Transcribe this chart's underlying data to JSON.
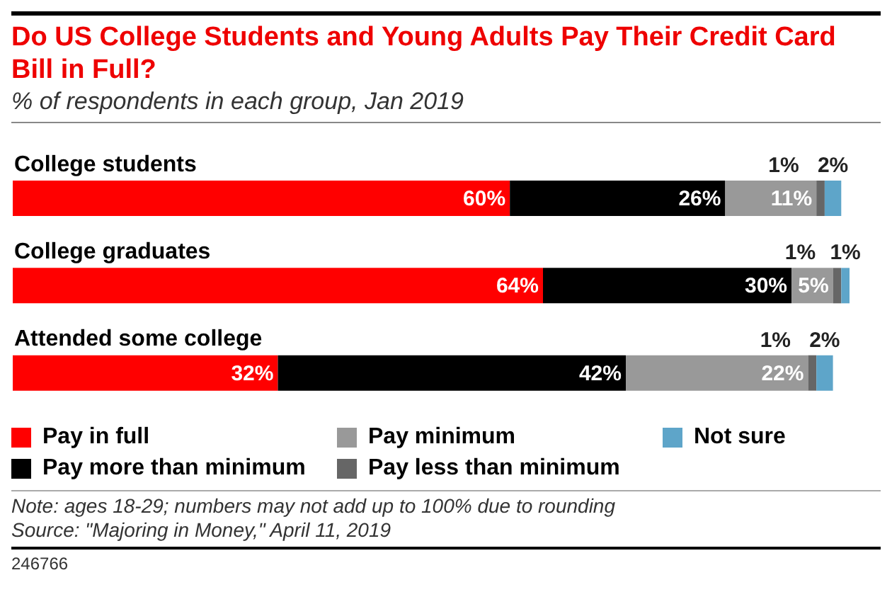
{
  "chart_data": {
    "type": "bar",
    "orientation": "horizontal",
    "stacked": true,
    "title": "Do US College Students and Young Adults Pay Their Credit Card Bill in Full?",
    "subtitle": "% of respondents in each group, Jan 2019",
    "categories": [
      "College students",
      "College graduates",
      "Attended some college"
    ],
    "series": [
      {
        "name": "Pay in full",
        "color": "#ff0000",
        "values": [
          60,
          64,
          32
        ],
        "value_labels": [
          "60%",
          "64%",
          "32%"
        ]
      },
      {
        "name": "Pay more than minimum",
        "color": "#000000",
        "values": [
          26,
          30,
          42
        ],
        "value_labels": [
          "26%",
          "30%",
          "42%"
        ]
      },
      {
        "name": "Pay minimum",
        "color": "#999999",
        "values": [
          11,
          5,
          22
        ],
        "value_labels": [
          "11%",
          "5%",
          "22%"
        ]
      },
      {
        "name": "Pay less than minimum",
        "color": "#666666",
        "values": [
          1,
          1,
          1
        ],
        "value_labels": [
          "1%",
          "1%",
          "1%"
        ]
      },
      {
        "name": "Not sure",
        "color": "#5ea5c9",
        "values": [
          2,
          1,
          2
        ],
        "value_labels": [
          "2%",
          "1%",
          "2%"
        ]
      }
    ],
    "legend": "bottom",
    "annotations": [
      "Note: ages 18-29; numbers may not add up to 100% due to rounding",
      "Source: \"Majoring in Money,\" April 11, 2019",
      "246766"
    ]
  }
}
